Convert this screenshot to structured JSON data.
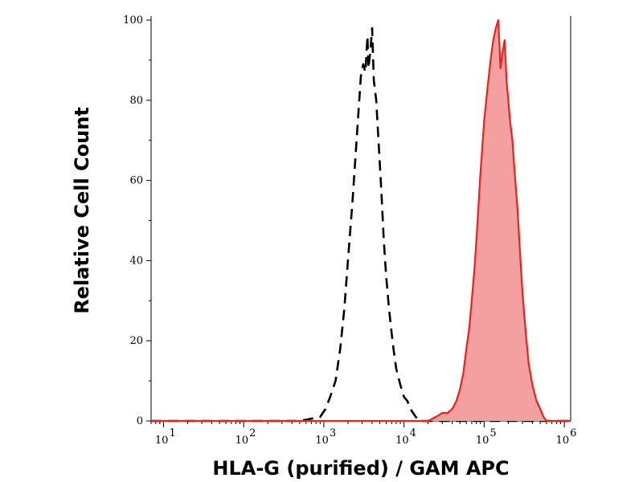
{
  "chart_data": {
    "type": "area",
    "title": "",
    "xlabel": "HLA-G (purified) / GAM APC",
    "ylabel": "Relative Cell Count",
    "x_scale": "log",
    "xlim": [
      7,
      1200000
    ],
    "ylim": [
      0,
      100
    ],
    "grid": false,
    "x_ticks": [
      {
        "base": "10",
        "exp": "1",
        "value": 10
      },
      {
        "base": "10",
        "exp": "2",
        "value": 100
      },
      {
        "base": "10",
        "exp": "3",
        "value": 1000
      },
      {
        "base": "10",
        "exp": "4",
        "value": 10000
      },
      {
        "base": "10",
        "exp": "5",
        "value": 100000
      },
      {
        "base": "10",
        "exp": "6",
        "value": 1000000
      }
    ],
    "y_ticks": [
      {
        "label": "0",
        "value": 0
      },
      {
        "label": "20",
        "value": 20
      },
      {
        "label": "40",
        "value": 40
      },
      {
        "label": "60",
        "value": 60
      },
      {
        "label": "80",
        "value": 80
      },
      {
        "label": "100",
        "value": 100
      }
    ],
    "series": [
      {
        "color": "#000000",
        "style": "dashed",
        "fill": "none",
        "x": [
          7,
          500,
          900,
          1050,
          1200,
          1400,
          1600,
          1800,
          2000,
          2300,
          2600,
          2900,
          3100,
          3300,
          3500,
          3600,
          3800,
          4000,
          4200,
          4500,
          4800,
          5200,
          5600,
          6000,
          6500,
          7000,
          7500,
          8000,
          9000,
          10000,
          11000,
          12000,
          13000,
          14000,
          16000,
          1200000
        ],
        "y": [
          0,
          0,
          1,
          3,
          6,
          10,
          18,
          28,
          40,
          56,
          72,
          86,
          89,
          87,
          96,
          88,
          92,
          98,
          85,
          80,
          70,
          58,
          45,
          36,
          28,
          22,
          17,
          13,
          9,
          6,
          5,
          3,
          2,
          1,
          0,
          0
        ]
      },
      {
        "color": "#e8221e",
        "style": "solid",
        "fill": "#f4a0a0",
        "x": [
          7,
          20000,
          25000,
          30000,
          35000,
          40000,
          45000,
          50000,
          55000,
          60000,
          65000,
          70000,
          75000,
          80000,
          90000,
          100000,
          110000,
          120000,
          130000,
          140000,
          150000,
          160000,
          170000,
          180000,
          190000,
          200000,
          210000,
          225000,
          240000,
          260000,
          280000,
          300000,
          330000,
          360000,
          400000,
          450000,
          500000,
          550000,
          600000,
          1200000
        ],
        "y": [
          0,
          0,
          1,
          2,
          2,
          3,
          5,
          8,
          12,
          18,
          23,
          30,
          37,
          45,
          62,
          75,
          83,
          90,
          95,
          98,
          100,
          88,
          92,
          95,
          85,
          80,
          75,
          70,
          62,
          53,
          42,
          32,
          22,
          14,
          9,
          5,
          3,
          1,
          0,
          0
        ]
      }
    ]
  }
}
